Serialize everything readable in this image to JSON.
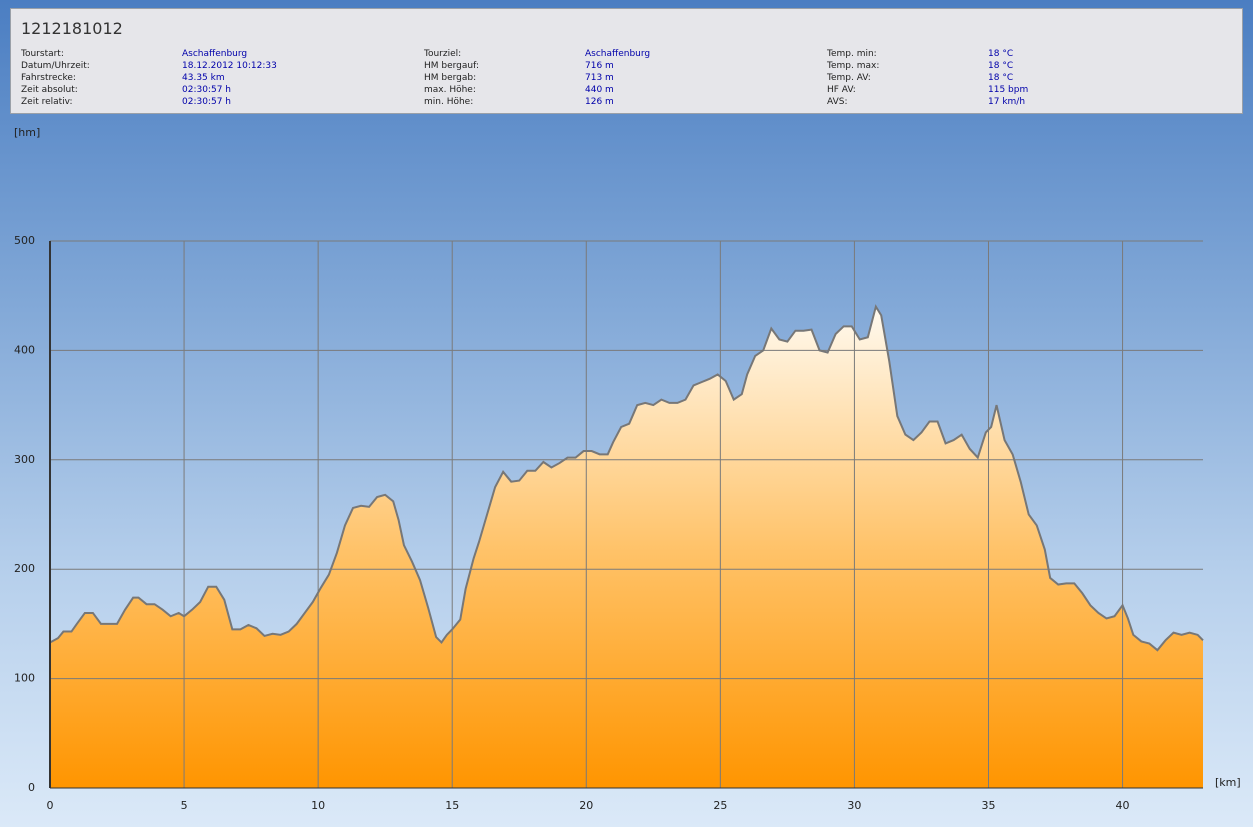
{
  "header": {
    "title": "1212181012",
    "fields": [
      [
        "Tourstart:",
        "Aschaffenburg"
      ],
      [
        "Datum/Uhrzeit:",
        "18.12.2012 10:12:33"
      ],
      [
        "Fahrstrecke:",
        "43.35 km"
      ],
      [
        "Zeit absolut:",
        "02:30:57 h"
      ],
      [
        "Zeit relativ:",
        "02:30:57 h"
      ],
      [
        "Tourziel:",
        "Aschaffenburg"
      ],
      [
        "HM bergauf:",
        "716 m"
      ],
      [
        "HM bergab:",
        "713 m"
      ],
      [
        "max. Höhe:",
        "440 m"
      ],
      [
        "min. Höhe:",
        "126 m"
      ],
      [
        "Temp. min:",
        "18 °C"
      ],
      [
        "Temp. max:",
        "18 °C"
      ],
      [
        "Temp. AV:",
        "18 °C"
      ],
      [
        "HF AV:",
        "115 bpm"
      ],
      [
        "AVS:",
        "17 km/h"
      ]
    ]
  },
  "chart_data": {
    "type": "area",
    "xlabel": "[km]",
    "ylabel": "[hm]",
    "x": [
      0,
      0.3,
      0.5,
      0.8,
      1,
      1.3,
      1.6,
      1.9,
      2.2,
      2.5,
      2.8,
      3.1,
      3.3,
      3.6,
      3.9,
      4.2,
      4.5,
      4.8,
      5,
      5.3,
      5.6,
      5.9,
      6.2,
      6.5,
      6.8,
      7.1,
      7.4,
      7.7,
      8,
      8.3,
      8.6,
      8.9,
      9.2,
      9.5,
      9.8,
      10.1,
      10.4,
      10.7,
      11,
      11.3,
      11.6,
      11.9,
      12.2,
      12.5,
      12.8,
      13,
      13.2,
      13.5,
      13.8,
      14.1,
      14.4,
      14.6,
      14.8,
      15,
      15.3,
      15.5,
      15.8,
      16,
      16.3,
      16.6,
      16.9,
      17.2,
      17.5,
      17.8,
      18.1,
      18.4,
      18.7,
      19,
      19.3,
      19.6,
      19.9,
      20.2,
      20.5,
      20.8,
      21,
      21.3,
      21.6,
      21.9,
      22.2,
      22.5,
      22.8,
      23.1,
      23.4,
      23.7,
      24,
      24.3,
      24.6,
      24.9,
      25.2,
      25.5,
      25.8,
      26,
      26.3,
      26.6,
      26.9,
      27.2,
      27.5,
      27.8,
      28.1,
      28.4,
      28.7,
      29,
      29.3,
      29.6,
      29.9,
      30.2,
      30.5,
      30.8,
      31,
      31.3,
      31.6,
      31.9,
      32.2,
      32.5,
      32.8,
      33.1,
      33.4,
      33.7,
      34,
      34.3,
      34.6,
      34.9,
      35.1,
      35.3,
      35.6,
      35.9,
      36.2,
      36.5,
      36.8,
      37.1,
      37.3,
      37.6,
      37.9,
      38.2,
      38.5,
      38.8,
      39.1,
      39.4,
      39.7,
      40,
      40.2,
      40.4,
      40.7,
      41,
      41.3,
      41.6,
      41.9,
      42.2,
      42.5,
      42.8,
      43
    ],
    "values": [
      133,
      137,
      143,
      143,
      150,
      160,
      160,
      150,
      150,
      150,
      163,
      174,
      174,
      168,
      168,
      163,
      157,
      160,
      157,
      163,
      170,
      184,
      184,
      172,
      145,
      145,
      149,
      146,
      139,
      141,
      140,
      143,
      150,
      160,
      170,
      183,
      195,
      215,
      240,
      256,
      258,
      257,
      266,
      268,
      262,
      245,
      222,
      207,
      190,
      165,
      138,
      133,
      140,
      145,
      154,
      182,
      210,
      225,
      250,
      275,
      289,
      280,
      281,
      290,
      290,
      298,
      293,
      297,
      302,
      302,
      308,
      308,
      305,
      305,
      316,
      330,
      333,
      350,
      352,
      350,
      355,
      352,
      352,
      355,
      368,
      371,
      374,
      378,
      372,
      355,
      360,
      378,
      395,
      400,
      420,
      410,
      408,
      418,
      418,
      419,
      400,
      398,
      415,
      422,
      422,
      410,
      412,
      440,
      432,
      390,
      340,
      323,
      318,
      325,
      335,
      335,
      315,
      318,
      323,
      310,
      302,
      325,
      330,
      350,
      318,
      305,
      280,
      250,
      240,
      218,
      192,
      186,
      187,
      187,
      178,
      167,
      160,
      155,
      157,
      167,
      155,
      140,
      134,
      132,
      126,
      135,
      142,
      140,
      142,
      140,
      135
    ],
    "color": "#777777",
    "xlim": [
      0,
      43
    ],
    "ylim": [
      0,
      500
    ],
    "xticks": [
      0,
      5,
      10,
      15,
      20,
      25,
      30,
      35,
      40
    ],
    "yticks": [
      0,
      100,
      200,
      300,
      400,
      500
    ],
    "grid": true
  }
}
